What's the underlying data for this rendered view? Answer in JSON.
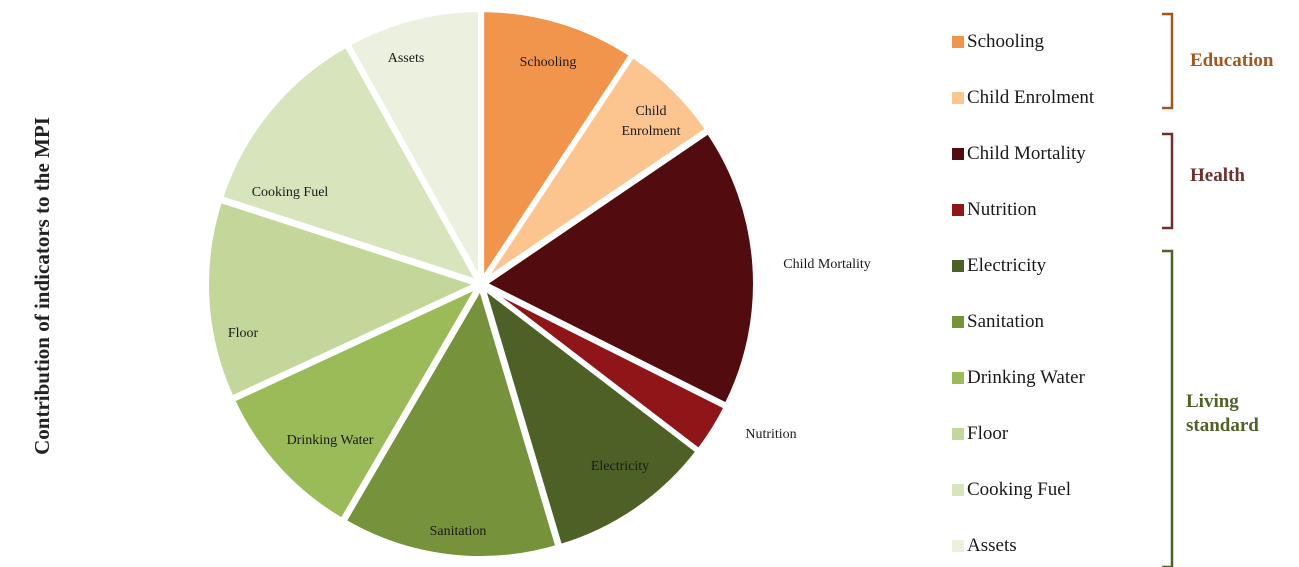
{
  "chart_data": {
    "type": "pie",
    "ylabel": "Contribution of indicators to the MPI",
    "slices": [
      {
        "name": "Schooling",
        "value": 9.3,
        "color": "#f0954b",
        "label": "Schooling"
      },
      {
        "name": "Child Enrolment",
        "value": 6.2,
        "color": "#fcc48e",
        "label": "Child\nEnrolment"
      },
      {
        "name": "Child Mortality",
        "value": 16.9,
        "color": "#520c10",
        "label": "Child Mortality"
      },
      {
        "name": "Nutrition",
        "value": 3.0,
        "color": "#8f1519",
        "label": "Nutrition"
      },
      {
        "name": "Electricity",
        "value": 10.0,
        "color": "#4d6127",
        "label": "Electricity"
      },
      {
        "name": "Sanitation",
        "value": 13.0,
        "color": "#76933c",
        "label": "Sanitation"
      },
      {
        "name": "Drinking Water",
        "value": 9.7,
        "color": "#9bbb59",
        "label": "Drinking Water"
      },
      {
        "name": "Floor",
        "value": 11.9,
        "color": "#c4d79b",
        "label": "Floor"
      },
      {
        "name": "Cooking Fuel",
        "value": 11.9,
        "color": "#d8e4bc",
        "label": "Cooking Fuel"
      },
      {
        "name": "Assets",
        "value": 8.1,
        "color": "#ebf1de",
        "label": "Assets"
      }
    ],
    "legend": [
      "Schooling",
      "Child Enrolment",
      "Child Mortality",
      "Nutrition",
      "Electricity",
      "Sanitation",
      "Drinking Water",
      "Floor",
      "Cooking Fuel",
      "Assets"
    ],
    "groups": [
      {
        "name": "Education",
        "members": [
          "Schooling",
          "Child Enrolment"
        ],
        "color": "#a0581e"
      },
      {
        "name": "Health",
        "members": [
          "Child Mortality",
          "Nutrition"
        ],
        "color": "#6e2f2f"
      },
      {
        "name": "Living\nstandard",
        "members": [
          "Electricity",
          "Sanitation",
          "Drinking Water",
          "Floor",
          "Cooking Fuel",
          "Assets"
        ],
        "color": "#4f6228"
      }
    ]
  }
}
